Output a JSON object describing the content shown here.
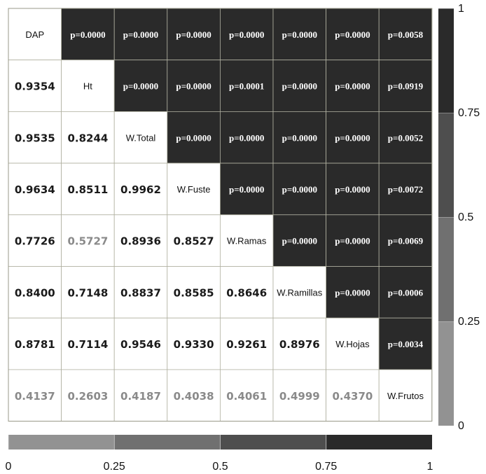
{
  "chart_data": {
    "type": "heatmap",
    "variables": [
      "DAP",
      "Ht",
      "W.Total",
      "W.Fuste",
      "W.Ramas",
      "W.Ramillas",
      "W.Hojas",
      "W.Frutos"
    ],
    "lower_triangle_correlations": [
      [
        null,
        null,
        null,
        null,
        null,
        null,
        null,
        null
      ],
      [
        "0.9354",
        null,
        null,
        null,
        null,
        null,
        null,
        null
      ],
      [
        "0.9535",
        "0.8244",
        null,
        null,
        null,
        null,
        null,
        null
      ],
      [
        "0.9634",
        "0.8511",
        "0.9962",
        null,
        null,
        null,
        null,
        null
      ],
      [
        "0.7726",
        "0.5727",
        "0.8936",
        "0.8527",
        null,
        null,
        null,
        null
      ],
      [
        "0.8400",
        "0.7148",
        "0.8837",
        "0.8585",
        "0.8646",
        null,
        null,
        null
      ],
      [
        "0.8781",
        "0.7114",
        "0.9546",
        "0.9330",
        "0.9261",
        "0.8976",
        null,
        null
      ],
      [
        "0.4137",
        "0.2603",
        "0.4187",
        "0.4038",
        "0.4061",
        "0.4999",
        "0.4370",
        null
      ]
    ],
    "upper_triangle_pvalues": [
      [
        null,
        "p=0.0000",
        "p=0.0000",
        "p=0.0000",
        "p=0.0000",
        "p=0.0000",
        "p=0.0000",
        "p=0.0058"
      ],
      [
        null,
        null,
        "p=0.0000",
        "p=0.0000",
        "p=0.0001",
        "p=0.0000",
        "p=0.0000",
        "p=0.0919"
      ],
      [
        null,
        null,
        null,
        "p=0.0000",
        "p=0.0000",
        "p=0.0000",
        "p=0.0000",
        "p=0.0052"
      ],
      [
        null,
        null,
        null,
        null,
        "p=0.0000",
        "p=0.0000",
        "p=0.0000",
        "p=0.0072"
      ],
      [
        null,
        null,
        null,
        null,
        null,
        "p=0.0000",
        "p=0.0000",
        "p=0.0069"
      ],
      [
        null,
        null,
        null,
        null,
        null,
        null,
        "p=0.0000",
        "p=0.0006"
      ],
      [
        null,
        null,
        null,
        null,
        null,
        null,
        null,
        "p=0.0034"
      ],
      [
        null,
        null,
        null,
        null,
        null,
        null,
        null,
        null
      ]
    ],
    "color_scale": {
      "ticks_horizontal": [
        "0",
        "0.25",
        "0.5",
        "0.75",
        "1"
      ],
      "ticks_vertical": [
        "1",
        "0.75",
        "0.5",
        "0.25",
        "0"
      ],
      "band_colors": [
        "#929292",
        "#707070",
        "#4e4e4e",
        "#2a2a2a"
      ],
      "text_color_low": "#8a8a8a",
      "text_color_high": "#1a1a1a",
      "range": [
        0,
        1
      ]
    },
    "grid": true
  }
}
